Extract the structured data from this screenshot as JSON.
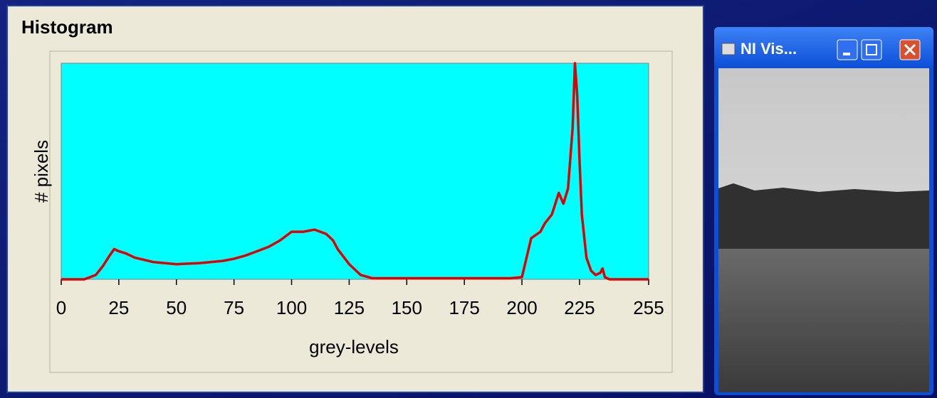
{
  "chart_data": {
    "type": "line",
    "title": "Histogram",
    "x_label": "grey-levels",
    "y_label": "# pixels",
    "x": [
      0,
      10,
      15,
      18,
      21,
      23,
      25,
      28,
      32,
      40,
      45,
      50,
      60,
      70,
      75,
      80,
      85,
      90,
      95,
      100,
      105,
      110,
      115,
      118,
      120,
      125,
      130,
      135,
      150,
      175,
      195,
      200,
      202,
      204,
      208,
      210,
      213,
      216,
      218,
      220,
      222,
      223,
      224,
      225,
      226,
      228,
      230,
      232,
      234,
      235,
      236,
      238,
      255
    ],
    "series": [
      {
        "name": "histogram",
        "color": "#e00000",
        "values": [
          0,
          0,
          2,
          6,
          11,
          14,
          13,
          12,
          10,
          8,
          7.5,
          7,
          7.5,
          8.5,
          9.5,
          11,
          13,
          15,
          18,
          22,
          22,
          23,
          21,
          18,
          14,
          7,
          2,
          0.5,
          0.5,
          0.5,
          0.5,
          1,
          10,
          19,
          22,
          26,
          30,
          40,
          35,
          42,
          70,
          100,
          85,
          55,
          30,
          10,
          4,
          2,
          3,
          5,
          1,
          0,
          0
        ]
      }
    ],
    "xlim": [
      0,
      255
    ],
    "ylim": [
      0,
      100
    ],
    "xticks": [
      0,
      25,
      50,
      75,
      100,
      125,
      150,
      175,
      200,
      225,
      255
    ],
    "background": "#00ffff"
  },
  "window": {
    "title": "NI Vis..."
  }
}
